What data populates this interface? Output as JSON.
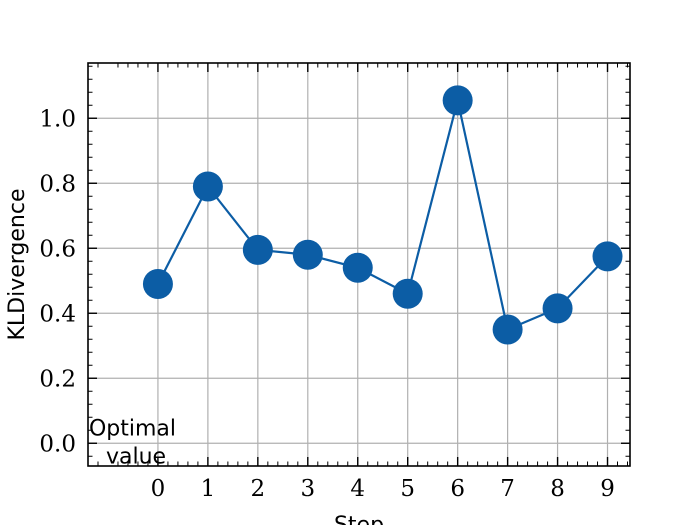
{
  "chart_data": {
    "type": "line",
    "xlabel": "Step",
    "ylabel": "KLDivergence",
    "x": [
      0,
      1,
      2,
      3,
      4,
      5,
      6,
      7,
      8,
      9
    ],
    "series": [
      {
        "values": [
          0.49,
          0.79,
          0.595,
          0.58,
          0.54,
          0.46,
          1.055,
          0.35,
          0.415,
          0.575
        ],
        "color": "#0C5DA5"
      }
    ],
    "xlim": [
      -1.4,
      9.45
    ],
    "ylim": [
      -0.07,
      1.17
    ],
    "xticks": [
      "0",
      "1",
      "2",
      "3",
      "4",
      "5",
      "6",
      "7",
      "8",
      "9"
    ],
    "yticks": [
      "0.0",
      "0.2",
      "0.4",
      "0.6",
      "0.8",
      "1.0"
    ],
    "grid": true,
    "annotation": {
      "lines": [
        "Optimal",
        "value"
      ],
      "x": -1.35,
      "y": 0.0
    }
  }
}
